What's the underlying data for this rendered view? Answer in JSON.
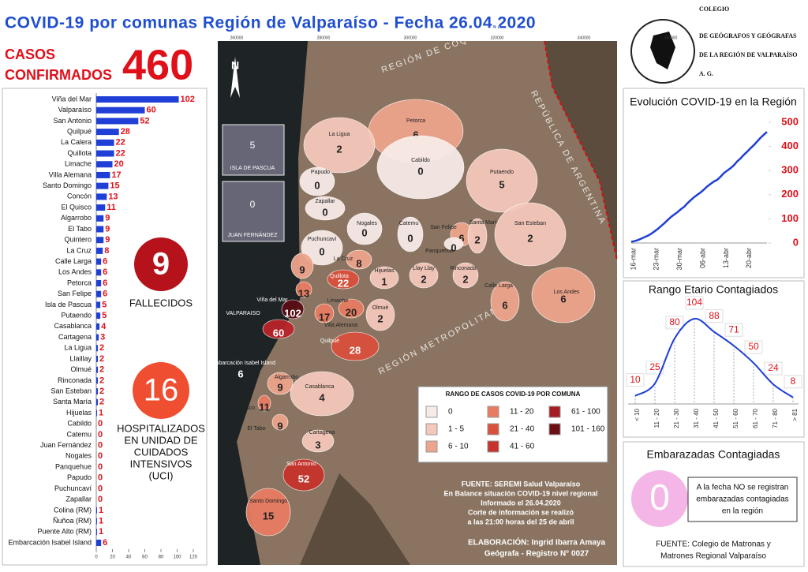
{
  "header": {
    "title": "COVID-19 por comunas Región de Valparaíso - Fecha 26.04.2020",
    "cases_label": [
      "CASOS",
      "CONFIRMADOS"
    ],
    "cases": "460",
    "logo": [
      "COLEGIO",
      "DE GEÓGRAFOS Y GEÓGRAFAS",
      "DE LA REGIÓN DE VALPARAÍSO",
      "A. G."
    ]
  },
  "deaths": {
    "value": "9",
    "label": "FALLECIDOS"
  },
  "icu": {
    "value": "16",
    "label": [
      "HOSPITALIZADOS",
      "EN UNIDAD DE",
      "CUIDADOS",
      "INTENSIVOS",
      "(UCI)"
    ]
  },
  "pregnant": {
    "title": "Embarazadas Contagiadas",
    "value": "0",
    "note": [
      "A la fecha NO se registran",
      "embarazadas contagiadas",
      "en la región"
    ],
    "source": [
      "FUENTE: Colegio de Matronas y",
      "Matrones Regional Valparaíso"
    ]
  },
  "chart_data": [
    {
      "type": "hbar",
      "color": "#1f3fd6",
      "label_color": "#e0101a",
      "categories": [
        "Viña del Mar",
        "Valparaíso",
        "San Antonio",
        "Quilpué",
        "La Calera",
        "Quillota",
        "Limache",
        "Villa Alemana",
        "Santo Domingo",
        "Concón",
        "El Quisco",
        "Algarrobo",
        "El Tabo",
        "Quintero",
        "La Cruz",
        "Calle Larga",
        "Los Andes",
        "Petorca",
        "San Felipe",
        "Isla de Pascua",
        "Putaendo",
        "Casablanca",
        "Cartagena",
        "La Ligua",
        "Llaillay",
        "Olmué",
        "Rinconada",
        "San Esteban",
        "Santa María",
        "Hijuelas",
        "Cabildo",
        "Catemu",
        "Juan Fernández",
        "Nogales",
        "Panquehue",
        "Papudo",
        "Puchuncaví",
        "Zapallar",
        "Colina (RM)",
        "Ñuñoa (RM)",
        "Puente Alto (RM)",
        "Embarcación Isabel Island"
      ],
      "values": [
        102,
        60,
        52,
        28,
        22,
        22,
        20,
        17,
        15,
        13,
        11,
        9,
        9,
        9,
        8,
        6,
        6,
        6,
        6,
        5,
        5,
        4,
        3,
        2,
        2,
        2,
        2,
        2,
        2,
        1,
        0,
        0,
        0,
        0,
        0,
        0,
        0,
        0,
        1,
        1,
        1,
        6
      ],
      "xlim": [
        0,
        120
      ],
      "xticks": [
        0,
        20,
        40,
        60,
        80,
        100,
        120
      ]
    },
    {
      "type": "line",
      "title": "Evolución COVID-19 en la Región",
      "color": "#1f3fd6",
      "tick_color": "#e0101a",
      "categories": [
        "16-mar",
        null,
        null,
        null,
        null,
        null,
        null,
        "23-mar",
        null,
        null,
        null,
        null,
        null,
        null,
        "30-mar",
        null,
        null,
        null,
        null,
        null,
        null,
        "06-abr",
        null,
        null,
        null,
        null,
        null,
        null,
        "13-abr",
        null,
        null,
        null,
        null,
        null,
        null,
        "20-abr",
        null,
        null,
        null,
        null,
        null,
        null
      ],
      "values": [
        5,
        8,
        12,
        18,
        24,
        30,
        38,
        48,
        58,
        70,
        82,
        95,
        108,
        118,
        128,
        140,
        150,
        165,
        178,
        190,
        200,
        210,
        222,
        235,
        245,
        255,
        262,
        275,
        290,
        300,
        310,
        322,
        338,
        350,
        365,
        378,
        392,
        405,
        420,
        435,
        448,
        460
      ],
      "ylim": [
        0,
        500
      ],
      "yticks": [
        0,
        100,
        200,
        300,
        400,
        500
      ]
    },
    {
      "type": "age",
      "title": "Rango Etario Contagiados",
      "color": "#1f3fd6",
      "label_color": "#e0101a",
      "categories": [
        "< 10",
        "11 - 20",
        "21 - 30",
        "31 - 40",
        "41 - 50",
        "51 - 60",
        "61 - 70",
        "71 - 80",
        "> 81"
      ],
      "values": [
        10,
        25,
        80,
        104,
        88,
        71,
        50,
        24,
        8
      ]
    }
  ],
  "map": {
    "north": "N",
    "insets": [
      {
        "name": "ISLA DE PASCUA",
        "value": 5
      },
      {
        "name": "JUAN FERNÁNDEZ",
        "value": 0
      }
    ],
    "regions": [
      "REGIÓN DE COQUIMBO",
      "REPÚBLICA DE ARGENTINA",
      "REGIÓN METROPOLITANA"
    ],
    "coords_x": [
      "260000",
      "280000",
      "300000",
      "320000",
      "340000",
      "360000"
    ],
    "communes": [
      {
        "name": "Petorca",
        "value": 6,
        "color": "#eea48c"
      },
      {
        "name": "La Ligua",
        "value": 2,
        "color": "#f4c8ba"
      },
      {
        "name": "Cabildo",
        "value": 0,
        "color": "#f7ebe7"
      },
      {
        "name": "Papudo",
        "value": 0,
        "color": "#f7ebe7"
      },
      {
        "name": "Putaendo",
        "value": 5,
        "color": "#f4c8ba"
      },
      {
        "name": "Zapallar",
        "value": 0,
        "color": "#f7ebe7"
      },
      {
        "name": "Nogales",
        "value": 0,
        "color": "#f7ebe7"
      },
      {
        "name": "Catemu",
        "value": 0,
        "color": "#f7ebe7"
      },
      {
        "name": "San Felipe",
        "value": 6,
        "color": "#eea48c"
      },
      {
        "name": "Santa María",
        "value": 2,
        "color": "#f4c8ba"
      },
      {
        "name": "San Esteban",
        "value": 2,
        "color": "#f4c8ba"
      },
      {
        "name": "Puchuncaví",
        "value": 0,
        "color": "#f7ebe7"
      },
      {
        "name": "Panquehue",
        "value": 0,
        "color": "#f7ebe7"
      },
      {
        "name": "La Cruz",
        "value": 8,
        "color": "#eea48c"
      },
      {
        "name": "Hijuelas",
        "value": 1,
        "color": "#f4c8ba"
      },
      {
        "name": "Llay Llay",
        "value": 2,
        "color": "#f4c8ba"
      },
      {
        "name": "Rinconada",
        "value": 2,
        "color": "#f4c8ba"
      },
      {
        "name": "Quintero",
        "value": 9,
        "color": "#eea48c"
      },
      {
        "name": "Concón",
        "value": 13,
        "color": "#e77c62"
      },
      {
        "name": "Quillota",
        "value": 22,
        "color": "#d9503d"
      },
      {
        "name": "Calle Larga",
        "value": 6,
        "color": "#eea48c"
      },
      {
        "name": "Los Andes",
        "value": 6,
        "color": "#eea48c"
      },
      {
        "name": "Viña del Mar",
        "value": 102,
        "color": "#5a0c14"
      },
      {
        "name": "Limache",
        "value": 20,
        "color": "#e77c62"
      },
      {
        "name": "Olmué",
        "value": 2,
        "color": "#f4c8ba"
      },
      {
        "name": "Villa Alemana",
        "value": 17,
        "color": "#e77c62"
      },
      {
        "name": "VALPARAISO",
        "value": 60,
        "color": "#b8242a"
      },
      {
        "name": "Quilpué",
        "value": 28,
        "color": "#d9503d"
      },
      {
        "name": "Embarcación Isabel Island",
        "value": 6,
        "color": "#eea48c"
      },
      {
        "name": "Algarrobo",
        "value": 9,
        "color": "#eea48c"
      },
      {
        "name": "Casablanca",
        "value": 4,
        "color": "#f4c8ba"
      },
      {
        "name": "El Quisco",
        "value": 11,
        "color": "#e77c62"
      },
      {
        "name": "El Tabo",
        "value": 9,
        "color": "#eea48c"
      },
      {
        "name": "Cartagena",
        "value": 3,
        "color": "#f4c8ba"
      },
      {
        "name": "San Antonio",
        "value": 52,
        "color": "#c5332c"
      },
      {
        "name": "Santo Domingo",
        "value": 15,
        "color": "#e77c62"
      }
    ],
    "legend": {
      "title": "RANGO DE CASOS COVID-19 POR COMUNA",
      "items": [
        {
          "label": "0",
          "color": "#f7ebe7"
        },
        {
          "label": "1 - 5",
          "color": "#f4c8ba"
        },
        {
          "label": "6 - 10",
          "color": "#eea48c"
        },
        {
          "label": "11 - 20",
          "color": "#e77c62"
        },
        {
          "label": "21 - 40",
          "color": "#d9503d"
        },
        {
          "label": "41 - 60",
          "color": "#c5332c"
        },
        {
          "label": "61 - 100",
          "color": "#a51e23"
        },
        {
          "label": "101 - 160",
          "color": "#6b0f17"
        }
      ]
    },
    "source": [
      "FUENTE: SEREMI Salud Valparaíso",
      "En Balance situación COVID-19 nivel regional",
      "Informado el 26.04.2020",
      "Corte de información se realizó",
      "a las 21:00 horas del 25 de abril"
    ],
    "credit": [
      "ELABORACIÓN: Ingrid Ibarra Amaya",
      "Geógrafa - Registro N° 0027"
    ]
  }
}
